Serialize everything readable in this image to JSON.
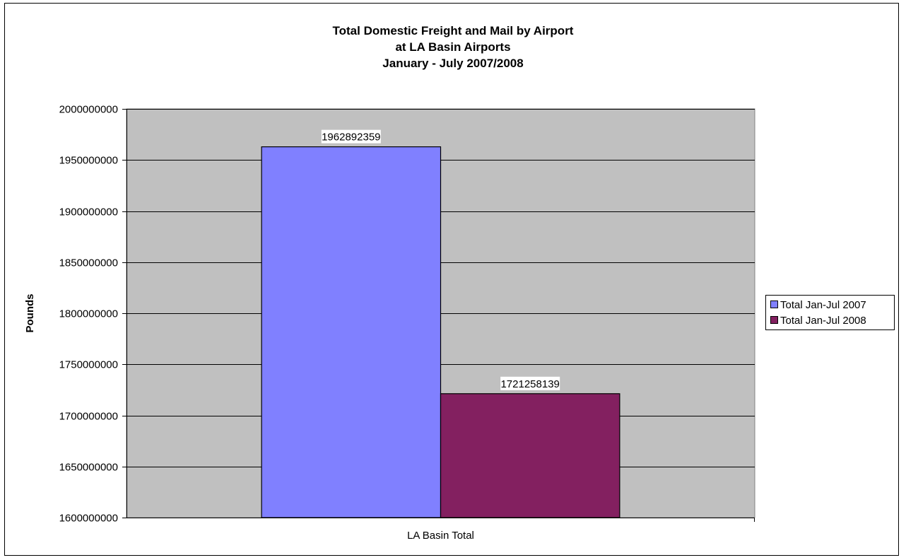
{
  "chart_data": {
    "type": "bar",
    "title": [
      "Total Domestic Freight and Mail by Airport",
      "at LA Basin Airports",
      "January - July 2007/2008"
    ],
    "xlabel": "",
    "ylabel": "Pounds",
    "categories": [
      "LA Basin Total"
    ],
    "ylim": [
      1600000000,
      2000000000
    ],
    "yticks": [
      "1600000000",
      "1650000000",
      "1700000000",
      "1750000000",
      "1800000000",
      "1850000000",
      "1900000000",
      "1950000000",
      "2000000000"
    ],
    "grid": true,
    "legend_position": "right",
    "series": [
      {
        "name": "Total Jan-Jul 2007",
        "values": [
          1962892359
        ],
        "label": "1962892359",
        "color": "#8080ff"
      },
      {
        "name": "Total Jan-Jul 2008",
        "values": [
          1721258139
        ],
        "label": "1721258139",
        "color": "#832060"
      }
    ],
    "plot_background": "#c0c0c0"
  }
}
